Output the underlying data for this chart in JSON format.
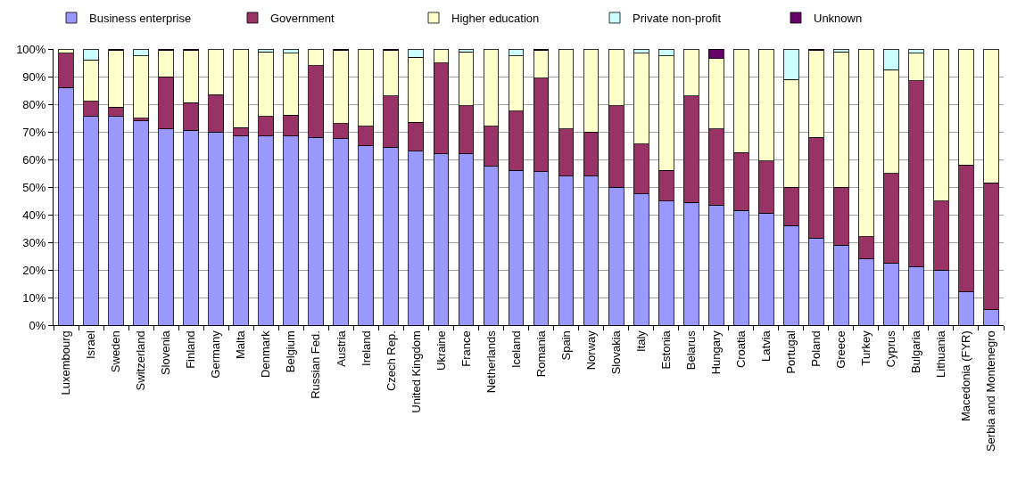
{
  "chart_data": {
    "type": "bar",
    "stacked": true,
    "categories": [
      "Luxembourg",
      "Israel",
      "Sweden",
      "Switzerland",
      "Slovenia",
      "Finland",
      "Germany",
      "Malta",
      "Denmark",
      "Belgium",
      "Russian Fed.",
      "Austria",
      "Ireland",
      "Czech Rep.",
      "United Kingdom",
      "Ukraine",
      "France",
      "Netherlands",
      "Iceland",
      "Romania",
      "Spain",
      "Norway",
      "Slovakia",
      "Italy",
      "Estonia",
      "Belarus",
      "Hungary",
      "Croatia",
      "Latvia",
      "Portugal",
      "Poland",
      "Greece",
      "Turkey",
      "Cyprus",
      "Bulgaria",
      "Lithuania",
      "Macedonia (FYR)",
      "Serbia and Montenegro"
    ],
    "series": [
      {
        "name": "Business enterprise",
        "color": "#9999ff",
        "values": [
          86,
          75.5,
          75.5,
          74,
          71,
          70.5,
          70,
          68.5,
          68.5,
          68.5,
          68,
          67.5,
          65,
          64.5,
          63,
          62,
          62,
          57.5,
          56,
          55.5,
          54,
          54,
          50,
          47.5,
          45,
          44.5,
          43.5,
          41.5,
          40.5,
          36,
          31.5,
          29,
          24,
          22.5,
          21,
          20,
          12,
          5.5
        ]
      },
      {
        "name": "Government",
        "color": "#993366",
        "values": [
          12.5,
          5.5,
          3.5,
          1,
          19,
          10,
          13.5,
          3,
          7,
          7.5,
          26,
          5.5,
          7,
          18.5,
          10.5,
          33,
          17.5,
          14.5,
          21.5,
          34,
          17,
          16,
          29.5,
          18,
          11,
          38.5,
          27.5,
          21,
          19,
          14,
          36.5,
          21,
          8,
          32.5,
          67.5,
          25,
          46,
          46
        ]
      },
      {
        "name": "Higher education",
        "color": "#ffffcc",
        "values": [
          1.5,
          15,
          20.5,
          22.5,
          9.5,
          19,
          16.5,
          28.5,
          23.5,
          22.5,
          6,
          26.5,
          28,
          16.5,
          23.5,
          5,
          19.5,
          28,
          20,
          10,
          29,
          30,
          20.5,
          33,
          41.5,
          17,
          25.5,
          37.5,
          40.5,
          39,
          31.5,
          49,
          68,
          37.5,
          10,
          55,
          42,
          48.5
        ]
      },
      {
        "name": "Private non-profit",
        "color": "#ccffff",
        "values": [
          null,
          4,
          null,
          2.5,
          null,
          null,
          null,
          null,
          1,
          1.5,
          null,
          null,
          null,
          null,
          3,
          null,
          1,
          null,
          2.5,
          null,
          null,
          null,
          null,
          1.5,
          2.5,
          null,
          null,
          null,
          null,
          11,
          null,
          1,
          null,
          7.5,
          1.5,
          null,
          null,
          null
        ]
      },
      {
        "name": "Unknown",
        "color": "#660066",
        "values": [
          null,
          null,
          0.5,
          null,
          0.5,
          0.5,
          null,
          null,
          null,
          null,
          null,
          0.5,
          null,
          0.5,
          null,
          null,
          null,
          null,
          null,
          0.5,
          null,
          null,
          null,
          null,
          null,
          null,
          3.5,
          null,
          null,
          null,
          0.5,
          null,
          null,
          null,
          null,
          null,
          null,
          null
        ]
      }
    ],
    "ylim": [
      0,
      100
    ],
    "yticks": [
      {
        "value": 0,
        "label": "0%"
      },
      {
        "value": 10,
        "label": "10%"
      },
      {
        "value": 20,
        "label": "20%"
      },
      {
        "value": 30,
        "label": "30%"
      },
      {
        "value": 40,
        "label": "40%"
      },
      {
        "value": 50,
        "label": "50%"
      },
      {
        "value": 60,
        "label": "60%"
      },
      {
        "value": 70,
        "label": "70%"
      },
      {
        "value": 80,
        "label": "80%"
      },
      {
        "value": 90,
        "label": "90%"
      },
      {
        "value": 100,
        "label": "100%"
      }
    ],
    "grid": "y",
    "legend": "top"
  }
}
